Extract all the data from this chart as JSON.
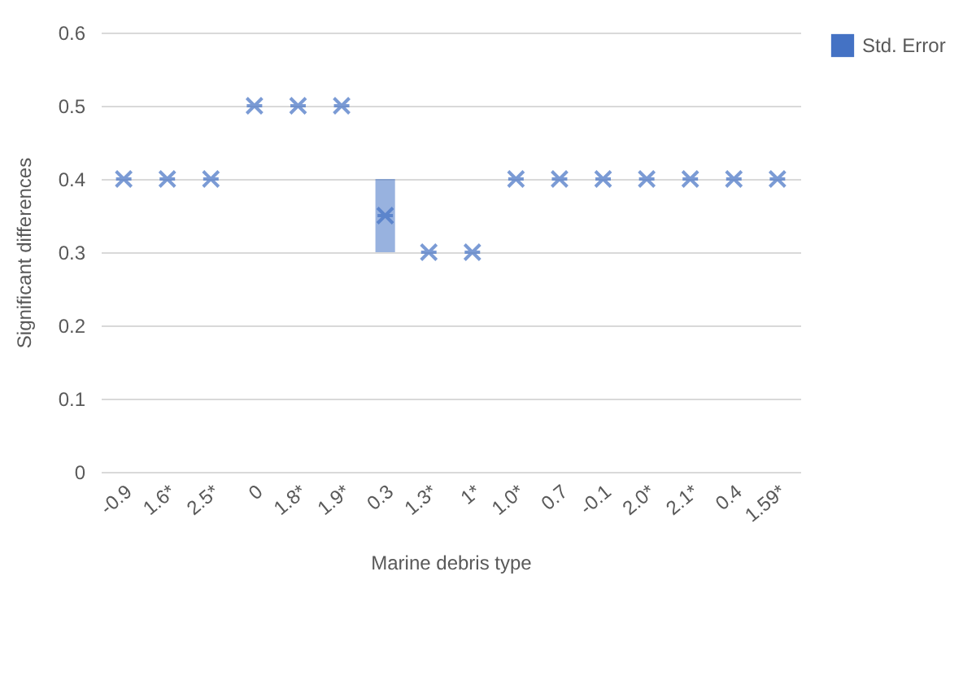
{
  "chart_data": {
    "type": "scatter",
    "xlabel": "Marine debris type",
    "ylabel": "Significant differences",
    "categories": [
      "-0.9",
      "1.6*",
      "2.5*",
      "0",
      "1.8*",
      "1.9*",
      "0.3",
      "1.3*",
      "1*",
      "1.0*",
      "0.7",
      "-0.1",
      "2.0*",
      "2.1*",
      "0.4",
      "1.59*"
    ],
    "series": [
      {
        "color": "#4472c4",
        "values": [
          0.4,
          0.4,
          0.4,
          0.5,
          0.5,
          0.5,
          0.35,
          0.3,
          0.3,
          0.4,
          0.4,
          0.4,
          0.4,
          0.4,
          0.4,
          0.4
        ]
      },
      {
        "type": "bar",
        "name": "Std. Error",
        "color": "#4472c4",
        "base": [
          null,
          null,
          null,
          null,
          null,
          null,
          0.3,
          null,
          null,
          null,
          null,
          null,
          null,
          null,
          null,
          null
        ],
        "values": [
          null,
          null,
          null,
          null,
          null,
          null,
          0.1,
          null,
          null,
          null,
          null,
          null,
          null,
          null,
          null,
          null
        ]
      }
    ],
    "ylim": [
      0,
      0.6
    ],
    "yticks": [
      {
        "value": 0,
        "label": "0"
      },
      0.1,
      0.2,
      0.3,
      0.4,
      0.5,
      0.6
    ],
    "grid": "y",
    "legend": "right",
    "marker": "cross"
  }
}
